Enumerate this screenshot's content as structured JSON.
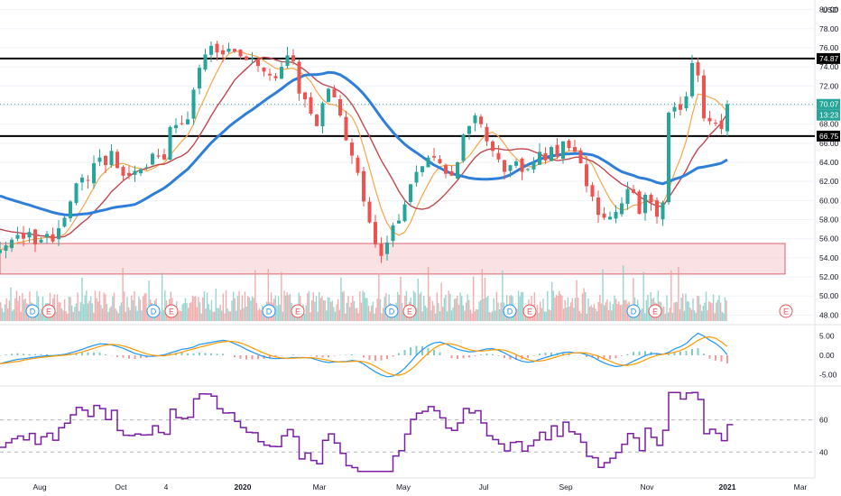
{
  "currency": "USD",
  "chart_data": {
    "type": "candlestick",
    "price_axis": {
      "ticks": [
        "48.00",
        "50.00",
        "52.00",
        "54.00",
        "56.00",
        "58.00",
        "60.00",
        "62.00",
        "64.00",
        "66.00",
        "68.00",
        "70.00",
        "72.00",
        "74.00",
        "76.00",
        "78.00",
        "80.00"
      ],
      "range": [
        47.0,
        81.0
      ]
    },
    "time_axis": {
      "labels": [
        "Aug",
        "Oct",
        "4",
        "2020",
        "Mar",
        "May",
        "Jul",
        "Sep",
        "Nov",
        "2021",
        "Mar"
      ],
      "bold_labels": [
        "2020",
        "2021"
      ]
    },
    "price_tags": {
      "resistance": "74.87",
      "last": "70.07",
      "countdown": "13:23",
      "support": "66.75"
    },
    "horizontal_lines": [
      74.87,
      66.75
    ],
    "demand_zone": [
      52.3,
      55.5
    ],
    "close_series": [
      54.8,
      55.3,
      55.9,
      56.4,
      56.0,
      56.7,
      55.4,
      55.9,
      56.5,
      55.7,
      57.1,
      58.2,
      59.9,
      61.8,
      62.4,
      62.1,
      63.9,
      64.5,
      63.7,
      65.2,
      63.4,
      62.6,
      62.6,
      63.1,
      63.3,
      63.5,
      64.9,
      64.6,
      64.3,
      67.7,
      67.9,
      68.0,
      68.5,
      71.6,
      73.9,
      75.3,
      76.2,
      75.5,
      75.3,
      75.9,
      75.6,
      75.1,
      74.7,
      74.9,
      74.1,
      73.5,
      73.1,
      72.8,
      74.0,
      75.2,
      74.6,
      71.2,
      70.6,
      69.1,
      67.8,
      70.2,
      71.7,
      70.8,
      68.9,
      66.3,
      64.7,
      62.9,
      59.9,
      57.7,
      55.4,
      54.2,
      55.6,
      57.4,
      57.9,
      59.6,
      61.7,
      63.0,
      63.6,
      64.5,
      64.5,
      63.9,
      62.8,
      62.6,
      64.0,
      66.9,
      67.8,
      68.9,
      68.0,
      66.2,
      65.2,
      64.3,
      63.0,
      63.7,
      64.1,
      63.0,
      63.3,
      64.0,
      65.1,
      64.2,
      65.6,
      64.6,
      66.2,
      65.5,
      65.1,
      63.9,
      61.5,
      60.4,
      58.5,
      58.2,
      58.3,
      58.8,
      59.7,
      61.2,
      60.8,
      58.6,
      60.6,
      59.8,
      58.3,
      59.8,
      69.2,
      69.8,
      69.5,
      70.9,
      74.4,
      73.1,
      68.6,
      68.3,
      68.1,
      67.5,
      70.1
    ],
    "series": [
      {
        "name": "MA 50"
      },
      {
        "name": "MA 100"
      },
      {
        "name": "MA 200"
      }
    ],
    "earnings_dividend_markers": [
      "D",
      "E",
      "D",
      "E",
      "D",
      "E",
      "D",
      "E",
      "D",
      "E",
      "D",
      "E",
      "E"
    ],
    "macd_panel": {
      "ticks": [
        "5.00",
        "0.00",
        "-5.00"
      ],
      "range": [
        -7.5,
        7.5
      ],
      "macd_line_color": "#2196f3",
      "signal_line_color": "#ff9800"
    },
    "rsi_panel": {
      "ticks": [
        "60",
        "40"
      ],
      "range": [
        25,
        80
      ],
      "levels": [
        60,
        40
      ],
      "line_color": "#7b1fa2"
    },
    "colors": {
      "up": "#26a69a",
      "down": "#ef5350",
      "ma50": "#f6a54a",
      "ma100": "#c1474f",
      "ma200": "#2f7ed8",
      "zone_fill": "#f8d7d9",
      "zone_stroke": "#d9626b",
      "last_price_bg": "#26a69a"
    }
  }
}
